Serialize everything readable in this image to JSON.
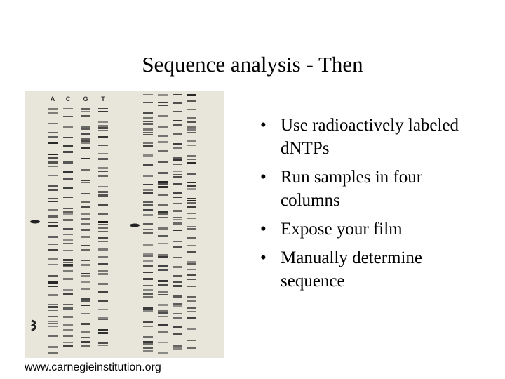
{
  "slide": {
    "title": "Sequence analysis - Then",
    "lane_labels": [
      "A",
      "C",
      "G",
      "T"
    ],
    "bullets": [
      "Use radioactively labeled dNTPs",
      "Run samples in four columns",
      "Expose your film",
      "Manually determine sequence"
    ],
    "caption": "www.carnegieinstitution.org"
  }
}
